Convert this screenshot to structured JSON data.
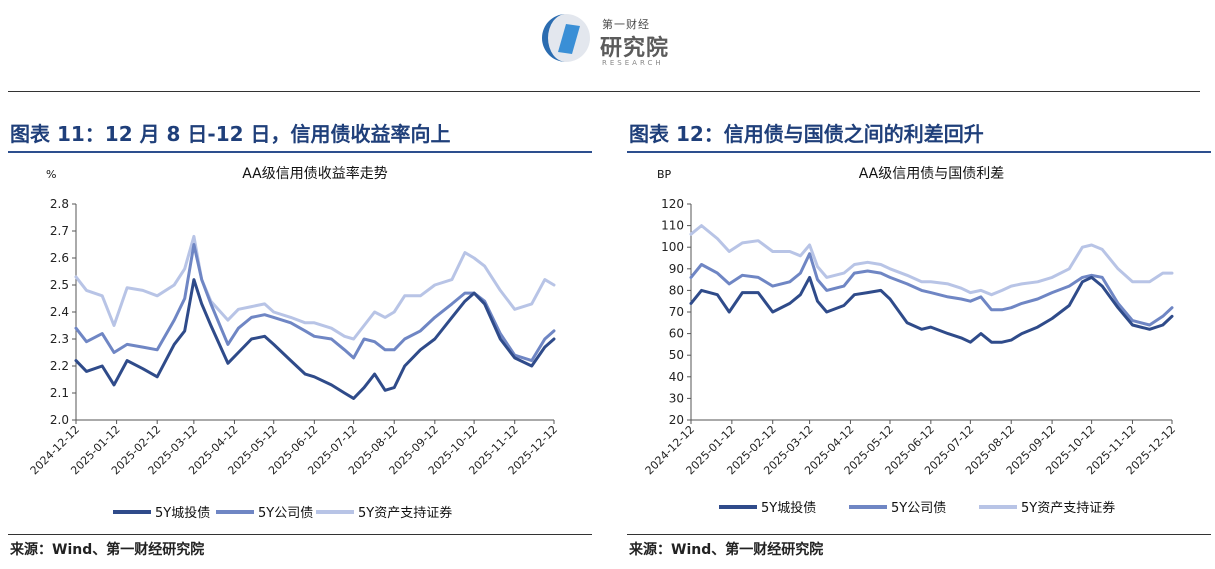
{
  "header": {
    "logo_small": "第一财经",
    "logo_big": "研究院",
    "logo_en": "RESEARCH"
  },
  "colors": {
    "title": "#1f3f7a",
    "series_dark": "#2f4b8a",
    "series_mid": "#6f86c4",
    "series_light": "#b8c4e6"
  },
  "panels": [
    {
      "title": "图表 11：12 月 8 日-12 日，信用债收益率向上",
      "source": "来源：Wind、第一财经研究院"
    },
    {
      "title": "图表 12：信用债与国债之间的利差回升",
      "source": "来源：Wind、第一财经研究院"
    }
  ],
  "chart_data": [
    {
      "type": "line",
      "title": "AA级信用债收益率走势",
      "ylabel": "%",
      "ylim": [
        2.0,
        2.8
      ],
      "yticks": [
        "2.0",
        "2.1",
        "2.2",
        "2.3",
        "2.4",
        "2.5",
        "2.6",
        "2.7",
        "2.8"
      ],
      "x_ticks": [
        "2024-12-12",
        "2025-01-12",
        "2025-02-12",
        "2025-03-12",
        "2025-04-12",
        "2025-05-12",
        "2025-06-12",
        "2025-07-12",
        "2025-08-12",
        "2025-09-12",
        "2025-10-12",
        "2025-11-12",
        "2025-12-12"
      ],
      "legend_position": "bottom",
      "series": [
        {
          "name": "5Y城投债",
          "color": "#2f4b8a",
          "x": [
            "2024-12-12",
            "2024-12-20",
            "2025-01-01",
            "2025-01-10",
            "2025-01-20",
            "2025-02-01",
            "2025-02-12",
            "2025-02-25",
            "2025-03-05",
            "2025-03-12",
            "2025-03-18",
            "2025-03-25",
            "2025-04-07",
            "2025-04-15",
            "2025-04-25",
            "2025-05-05",
            "2025-05-12",
            "2025-05-25",
            "2025-06-05",
            "2025-06-12",
            "2025-06-25",
            "2025-07-05",
            "2025-07-12",
            "2025-07-20",
            "2025-07-28",
            "2025-08-05",
            "2025-08-12",
            "2025-08-20",
            "2025-09-01",
            "2025-09-12",
            "2025-09-25",
            "2025-10-05",
            "2025-10-12",
            "2025-10-20",
            "2025-11-01",
            "2025-11-12",
            "2025-11-25",
            "2025-12-05",
            "2025-12-12"
          ],
          "y": [
            2.22,
            2.18,
            2.2,
            2.13,
            2.22,
            2.19,
            2.16,
            2.28,
            2.33,
            2.52,
            2.43,
            2.35,
            2.21,
            2.25,
            2.3,
            2.31,
            2.28,
            2.22,
            2.17,
            2.16,
            2.13,
            2.1,
            2.08,
            2.12,
            2.17,
            2.11,
            2.12,
            2.2,
            2.26,
            2.3,
            2.38,
            2.44,
            2.47,
            2.43,
            2.3,
            2.23,
            2.2,
            2.27,
            2.3
          ]
        },
        {
          "name": "5Y公司债",
          "color": "#6f86c4",
          "x": [
            "2024-12-12",
            "2024-12-20",
            "2025-01-01",
            "2025-01-10",
            "2025-01-20",
            "2025-02-01",
            "2025-02-12",
            "2025-02-25",
            "2025-03-05",
            "2025-03-12",
            "2025-03-18",
            "2025-03-25",
            "2025-04-07",
            "2025-04-15",
            "2025-04-25",
            "2025-05-05",
            "2025-05-12",
            "2025-05-25",
            "2025-06-05",
            "2025-06-12",
            "2025-06-25",
            "2025-07-05",
            "2025-07-12",
            "2025-07-20",
            "2025-07-28",
            "2025-08-05",
            "2025-08-12",
            "2025-08-20",
            "2025-09-01",
            "2025-09-12",
            "2025-09-25",
            "2025-10-05",
            "2025-10-12",
            "2025-10-20",
            "2025-11-01",
            "2025-11-12",
            "2025-11-25",
            "2025-12-05",
            "2025-12-12"
          ],
          "y": [
            2.34,
            2.29,
            2.32,
            2.25,
            2.28,
            2.27,
            2.26,
            2.37,
            2.45,
            2.65,
            2.52,
            2.43,
            2.28,
            2.34,
            2.38,
            2.39,
            2.38,
            2.36,
            2.33,
            2.31,
            2.3,
            2.26,
            2.23,
            2.3,
            2.29,
            2.26,
            2.26,
            2.3,
            2.33,
            2.38,
            2.43,
            2.47,
            2.47,
            2.44,
            2.32,
            2.24,
            2.22,
            2.3,
            2.33
          ]
        },
        {
          "name": "5Y资产支持证券",
          "color": "#b8c4e6",
          "x": [
            "2024-12-12",
            "2024-12-20",
            "2025-01-01",
            "2025-01-10",
            "2025-01-20",
            "2025-02-01",
            "2025-02-12",
            "2025-02-25",
            "2025-03-05",
            "2025-03-12",
            "2025-03-18",
            "2025-03-25",
            "2025-04-07",
            "2025-04-15",
            "2025-04-25",
            "2025-05-05",
            "2025-05-12",
            "2025-05-25",
            "2025-06-05",
            "2025-06-12",
            "2025-06-25",
            "2025-07-05",
            "2025-07-12",
            "2025-07-20",
            "2025-07-28",
            "2025-08-05",
            "2025-08-12",
            "2025-08-20",
            "2025-09-01",
            "2025-09-12",
            "2025-09-25",
            "2025-10-05",
            "2025-10-12",
            "2025-10-20",
            "2025-11-01",
            "2025-11-12",
            "2025-11-25",
            "2025-12-05",
            "2025-12-12"
          ],
          "y": [
            2.53,
            2.48,
            2.46,
            2.35,
            2.49,
            2.48,
            2.46,
            2.5,
            2.56,
            2.68,
            2.52,
            2.44,
            2.37,
            2.41,
            2.42,
            2.43,
            2.4,
            2.38,
            2.36,
            2.36,
            2.34,
            2.31,
            2.3,
            2.35,
            2.4,
            2.38,
            2.4,
            2.46,
            2.46,
            2.5,
            2.52,
            2.62,
            2.6,
            2.57,
            2.48,
            2.41,
            2.43,
            2.52,
            2.5
          ]
        }
      ]
    },
    {
      "type": "line",
      "title": "AA级信用债与国债利差",
      "ylabel": "BP",
      "ylim": [
        20,
        120
      ],
      "yticks": [
        "20",
        "30",
        "40",
        "50",
        "60",
        "70",
        "80",
        "90",
        "100",
        "110",
        "120"
      ],
      "x_ticks": [
        "2024-12-12",
        "2025-01-12",
        "2025-02-12",
        "2025-03-12",
        "2025-04-12",
        "2025-05-12",
        "2025-06-12",
        "2025-07-12",
        "2025-08-12",
        "2025-09-12",
        "2025-10-12",
        "2025-11-12",
        "2025-12-12"
      ],
      "legend_position": "bottom",
      "series": [
        {
          "name": "5Y城投债",
          "color": "#2f4b8a",
          "x": [
            "2024-12-12",
            "2024-12-20",
            "2025-01-01",
            "2025-01-10",
            "2025-01-20",
            "2025-02-01",
            "2025-02-12",
            "2025-02-25",
            "2025-03-05",
            "2025-03-12",
            "2025-03-18",
            "2025-03-25",
            "2025-04-07",
            "2025-04-15",
            "2025-04-25",
            "2025-05-05",
            "2025-05-12",
            "2025-05-25",
            "2025-06-05",
            "2025-06-12",
            "2025-06-25",
            "2025-07-05",
            "2025-07-12",
            "2025-07-20",
            "2025-07-28",
            "2025-08-05",
            "2025-08-12",
            "2025-08-20",
            "2025-09-01",
            "2025-09-12",
            "2025-09-25",
            "2025-10-05",
            "2025-10-12",
            "2025-10-20",
            "2025-11-01",
            "2025-11-12",
            "2025-11-25",
            "2025-12-05",
            "2025-12-12"
          ],
          "y": [
            74,
            80,
            78,
            70,
            79,
            79,
            70,
            74,
            78,
            86,
            75,
            70,
            73,
            78,
            79,
            80,
            76,
            65,
            62,
            63,
            60,
            58,
            56,
            60,
            56,
            56,
            57,
            60,
            63,
            67,
            73,
            84,
            86,
            82,
            72,
            64,
            62,
            64,
            68
          ]
        },
        {
          "name": "5Y公司债",
          "color": "#6f86c4",
          "x": [
            "2024-12-12",
            "2024-12-20",
            "2025-01-01",
            "2025-01-10",
            "2025-01-20",
            "2025-02-01",
            "2025-02-12",
            "2025-02-25",
            "2025-03-05",
            "2025-03-12",
            "2025-03-18",
            "2025-03-25",
            "2025-04-07",
            "2025-04-15",
            "2025-04-25",
            "2025-05-05",
            "2025-05-12",
            "2025-05-25",
            "2025-06-05",
            "2025-06-12",
            "2025-06-25",
            "2025-07-05",
            "2025-07-12",
            "2025-07-20",
            "2025-07-28",
            "2025-08-05",
            "2025-08-12",
            "2025-08-20",
            "2025-09-01",
            "2025-09-12",
            "2025-09-25",
            "2025-10-05",
            "2025-10-12",
            "2025-10-20",
            "2025-11-01",
            "2025-11-12",
            "2025-11-25",
            "2025-12-05",
            "2025-12-12"
          ],
          "y": [
            86,
            92,
            88,
            83,
            87,
            86,
            82,
            84,
            88,
            97,
            85,
            80,
            82,
            88,
            89,
            88,
            86,
            83,
            80,
            79,
            77,
            76,
            75,
            77,
            71,
            71,
            72,
            74,
            76,
            79,
            82,
            86,
            87,
            86,
            74,
            66,
            64,
            68,
            72
          ]
        },
        {
          "name": "5Y资产支持证券",
          "color": "#b8c4e6",
          "x": [
            "2024-12-12",
            "2024-12-20",
            "2025-01-01",
            "2025-01-10",
            "2025-01-20",
            "2025-02-01",
            "2025-02-12",
            "2025-02-25",
            "2025-03-05",
            "2025-03-12",
            "2025-03-18",
            "2025-03-25",
            "2025-04-07",
            "2025-04-15",
            "2025-04-25",
            "2025-05-05",
            "2025-05-12",
            "2025-05-25",
            "2025-06-05",
            "2025-06-12",
            "2025-06-25",
            "2025-07-05",
            "2025-07-12",
            "2025-07-20",
            "2025-07-28",
            "2025-08-05",
            "2025-08-12",
            "2025-08-20",
            "2025-09-01",
            "2025-09-12",
            "2025-09-25",
            "2025-10-05",
            "2025-10-12",
            "2025-10-20",
            "2025-11-01",
            "2025-11-12",
            "2025-11-25",
            "2025-12-05",
            "2025-12-12"
          ],
          "y": [
            106,
            110,
            104,
            98,
            102,
            103,
            98,
            98,
            96,
            101,
            91,
            86,
            88,
            92,
            93,
            92,
            90,
            87,
            84,
            84,
            83,
            81,
            79,
            80,
            78,
            80,
            82,
            83,
            84,
            86,
            90,
            100,
            101,
            99,
            90,
            84,
            84,
            88,
            88
          ]
        }
      ]
    }
  ]
}
